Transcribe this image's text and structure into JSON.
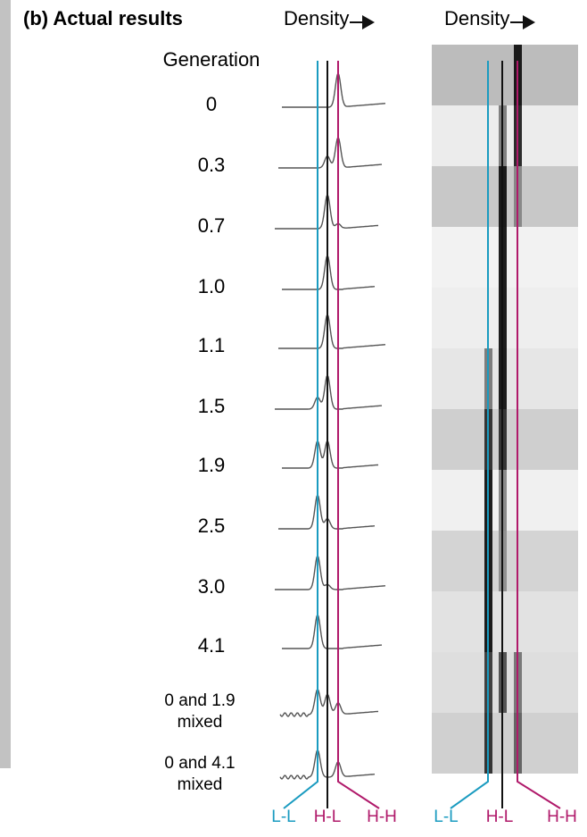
{
  "header": {
    "title": "(b) Actual results",
    "density_left": "Density",
    "density_right": "Density"
  },
  "generation_heading": "Generation",
  "generations": [
    "0",
    "0.3",
    "0.7",
    "1.0",
    "1.1",
    "1.5",
    "1.9",
    "2.5",
    "3.0",
    "4.1"
  ],
  "mixed": [
    [
      "0 and 1.9",
      "mixed"
    ],
    [
      "0 and 4.1",
      "mixed"
    ]
  ],
  "band_labels_left": [
    "L-L",
    "H-L",
    "H-H"
  ],
  "band_labels_right": [
    "L-L",
    "H-L",
    "H-H"
  ]
}
